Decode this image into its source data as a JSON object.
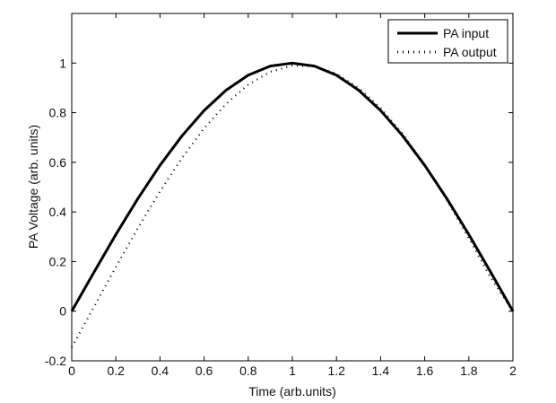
{
  "chart_data": {
    "type": "line",
    "title": "",
    "xlabel": "Time (arb.units)",
    "ylabel": "PA  Voltage (arb. units)",
    "xlim": [
      0,
      2
    ],
    "ylim": [
      -0.2,
      1.2
    ],
    "grid": false,
    "legend_position": "upper right",
    "x_ticks": [
      "0",
      "0.2",
      "0.4",
      "0.6",
      "0.8",
      "1",
      "1.2",
      "1.4",
      "1.6",
      "1.8",
      "2"
    ],
    "y_ticks": [
      "-0.2",
      "0",
      "0.2",
      "0.4",
      "0.6",
      "0.8",
      "1"
    ],
    "x": [
      0,
      0.1,
      0.2,
      0.3,
      0.4,
      0.5,
      0.6,
      0.7,
      0.8,
      0.9,
      1.0,
      1.1,
      1.2,
      1.3,
      1.4,
      1.5,
      1.6,
      1.7,
      1.8,
      1.9,
      2.0
    ],
    "series": [
      {
        "name": "PA input",
        "style": "solid",
        "values": [
          0,
          0.156,
          0.309,
          0.454,
          0.588,
          0.707,
          0.809,
          0.891,
          0.951,
          0.988,
          1.0,
          0.988,
          0.951,
          0.891,
          0.809,
          0.707,
          0.588,
          0.454,
          0.309,
          0.156,
          0
        ]
      },
      {
        "name": "PA output",
        "style": "dotted",
        "values": [
          -0.146,
          0.016,
          0.178,
          0.335,
          0.483,
          0.618,
          0.737,
          0.836,
          0.913,
          0.965,
          0.99,
          0.987,
          0.957,
          0.9,
          0.819,
          0.715,
          0.59,
          0.449,
          0.294,
          0.133,
          0
        ]
      }
    ]
  },
  "legend": {
    "entries": [
      "PA input",
      "PA output"
    ]
  }
}
